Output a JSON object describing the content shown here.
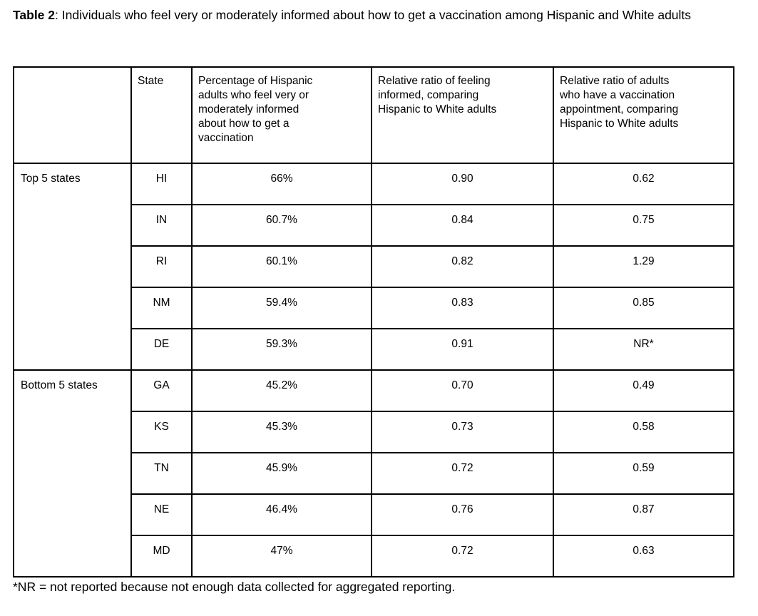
{
  "title": {
    "label": "Table 2",
    "text": ": Individuals who feel very or moderately informed about how to get a vaccination among Hispanic and White adults"
  },
  "table": {
    "headers": {
      "corner": "",
      "state": "State",
      "percentage": "Percentage of Hispanic\nadults who feel very or\nmoderately informed\nabout how to get a\nvaccination",
      "ratio_informed": "Relative ratio of feeling\ninformed, comparing\nHispanic to White adults",
      "ratio_appointment": "Relative ratio of adults\nwho have a vaccination\nappointment, comparing\nHispanic to White adults"
    },
    "groups": [
      {
        "label": "Top 5 states",
        "rows": [
          [
            "HI",
            "66%",
            "0.90",
            "0.62"
          ],
          [
            "IN",
            "60.7%",
            "0.84",
            "0.75"
          ],
          [
            "RI",
            "60.1%",
            "0.82",
            "1.29"
          ],
          [
            "NM",
            "59.4%",
            "0.83",
            "0.85"
          ],
          [
            "DE",
            "59.3%",
            "0.91",
            "NR*"
          ]
        ]
      },
      {
        "label": "Bottom 5 states",
        "rows": [
          [
            "GA",
            "45.2%",
            "0.70",
            "0.49"
          ],
          [
            "KS",
            "45.3%",
            "0.73",
            "0.58"
          ],
          [
            "TN",
            "45.9%",
            "0.72",
            "0.59"
          ],
          [
            "NE",
            "46.4%",
            "0.76",
            "0.87"
          ],
          [
            "MD",
            "47%",
            "0.72",
            "0.63"
          ]
        ]
      }
    ]
  },
  "footnote": "*NR = not reported because not enough data collected for aggregated reporting."
}
